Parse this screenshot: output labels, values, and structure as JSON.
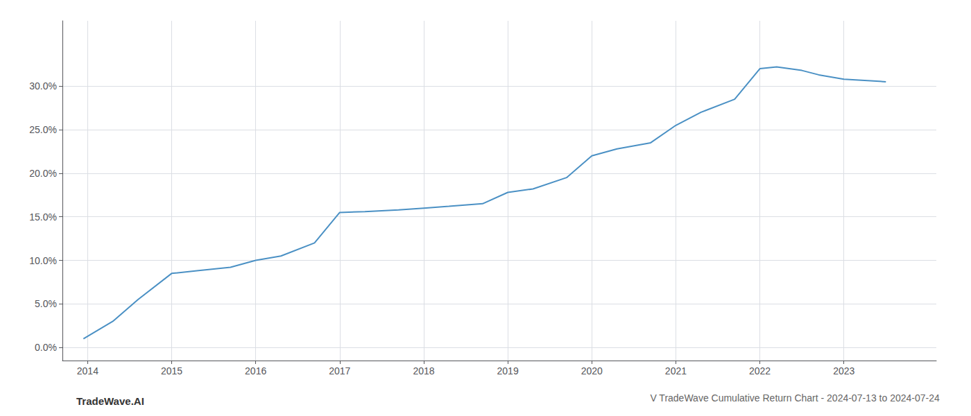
{
  "chart_data": {
    "type": "line",
    "title": "V TradeWave Cumulative Return Chart - 2024-07-13 to 2024-07-24",
    "annotations": [
      "TradeWave.AI"
    ],
    "x": [
      2013.95,
      2014.3,
      2014.6,
      2015.0,
      2015.3,
      2015.7,
      2016.0,
      2016.3,
      2016.7,
      2017.0,
      2017.3,
      2017.7,
      2018.0,
      2018.3,
      2018.7,
      2019.0,
      2019.3,
      2019.7,
      2020.0,
      2020.3,
      2020.7,
      2021.0,
      2021.3,
      2021.7,
      2022.0,
      2022.2,
      2022.5,
      2022.7,
      2023.0,
      2023.5
    ],
    "values": [
      0.01,
      0.03,
      0.055,
      0.085,
      0.088,
      0.092,
      0.1,
      0.105,
      0.12,
      0.155,
      0.156,
      0.158,
      0.16,
      0.162,
      0.165,
      0.178,
      0.182,
      0.195,
      0.22,
      0.228,
      0.235,
      0.255,
      0.27,
      0.285,
      0.32,
      0.322,
      0.318,
      0.313,
      0.308,
      0.305
    ],
    "color": "#4a90c4",
    "xlim": [
      2013.7,
      2024.1
    ],
    "ylim": [
      -0.015,
      0.375
    ],
    "xticks": [
      2014,
      2015,
      2016,
      2017,
      2018,
      2019,
      2020,
      2021,
      2022,
      2023
    ],
    "yticks": [
      {
        "value": 0.0,
        "label": "0.0%"
      },
      {
        "value": 0.05,
        "label": "5.0%"
      },
      {
        "value": 0.1,
        "label": "10.0%"
      },
      {
        "value": 0.15,
        "label": "15.0%"
      },
      {
        "value": 0.2,
        "label": "20.0%"
      },
      {
        "value": 0.25,
        "label": "25.0%"
      },
      {
        "value": 0.3,
        "label": "30.0%"
      }
    ],
    "grid": true
  }
}
